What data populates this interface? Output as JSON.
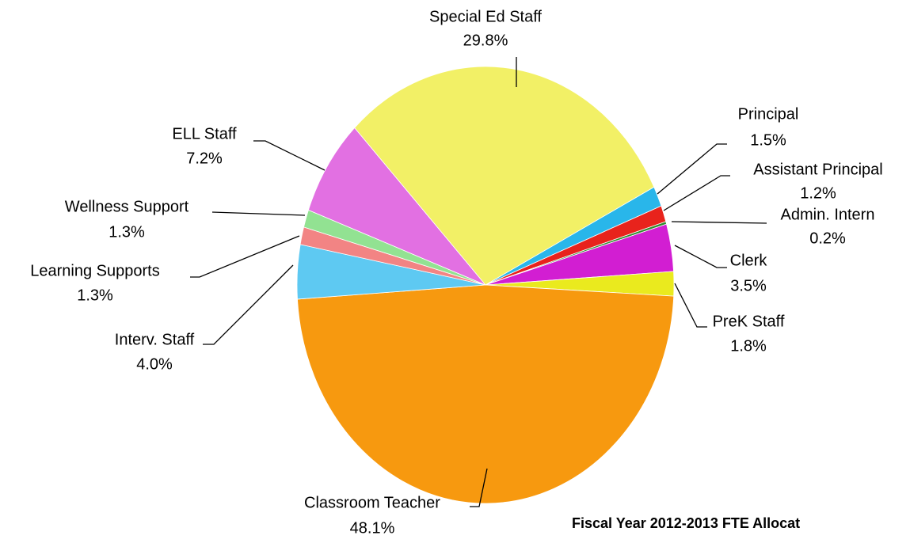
{
  "chart_data": {
    "type": "pie",
    "title": "Fiscal Year 2012-2013 FTE Allocat",
    "categories": [
      "Special Ed Staff",
      "Principal",
      "Assistant Principal",
      "Admin. Intern",
      "Clerk",
      "PreK Staff",
      "Classroom Teacher",
      "Interv. Staff",
      "Learning Supports",
      "Wellness Support",
      "ELL Staff"
    ],
    "values": [
      29.8,
      1.5,
      1.2,
      0.2,
      3.5,
      1.8,
      48.1,
      4.0,
      1.3,
      1.3,
      7.2
    ],
    "value_labels": [
      "29.8%",
      "1.5%",
      "1.2%",
      "0.2%",
      "3.5%",
      "1.8%",
      "48.1%",
      "4.0%",
      "1.3%",
      "1.3%",
      "7.2%"
    ],
    "colors": [
      "#f2f066",
      "#29b6ea",
      "#e8231c",
      "#2e8b2e",
      "#d21ed2",
      "#eaea1e",
      "#f7990f",
      "#5ec9f2",
      "#f28484",
      "#92e292",
      "#e270e2"
    ]
  }
}
